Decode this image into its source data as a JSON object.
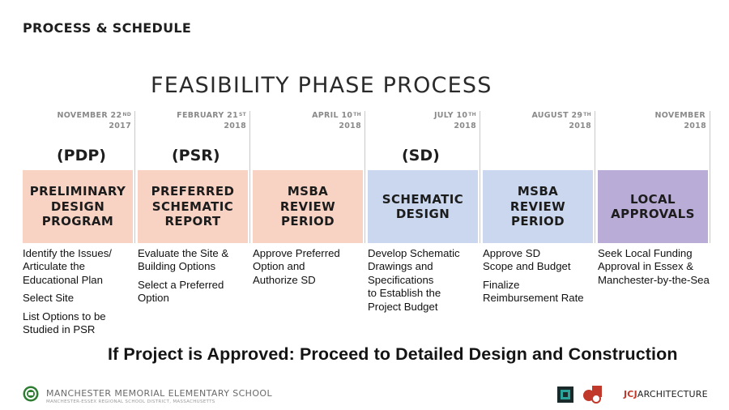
{
  "section_title": "PROCESS & SCHEDULE",
  "main_title": "FEASIBILITY PHASE PROCESS",
  "phases": [
    {
      "date_main": "NOVEMBER 22",
      "date_sup": "ND",
      "year": "2017",
      "abbr": "(PDP)",
      "title": "PRELIMINARY\nDESIGN\nPROGRAM",
      "color": "#f8d3c4",
      "items": [
        "Identify the Issues/\nArticulate the\nEducational Plan",
        "Select Site",
        "List Options to be\nStudied in PSR"
      ]
    },
    {
      "date_main": "FEBRUARY 21",
      "date_sup": "ST",
      "year": "2018",
      "abbr": "(PSR)",
      "title": "PREFERRED\nSCHEMATIC\nREPORT",
      "color": "#f8d3c4",
      "items": [
        "Evaluate the Site &\nBuilding Options",
        "Select a Preferred\nOption"
      ]
    },
    {
      "date_main": "APRIL 10",
      "date_sup": "TH",
      "year": "2018",
      "abbr": "",
      "title": "MSBA\nREVIEW\nPERIOD",
      "color": "#f8d3c4",
      "items": [
        "Approve Preferred\nOption and\nAuthorize SD"
      ]
    },
    {
      "date_main": "JULY 10",
      "date_sup": "TH",
      "year": "2018",
      "abbr": "(SD)",
      "title": "SCHEMATIC\nDESIGN",
      "color": "#cad7ee",
      "items": [
        "Develop Schematic\nDrawings and\nSpecifications\nto Establish the\nProject Budget"
      ]
    },
    {
      "date_main": "AUGUST 29",
      "date_sup": "TH",
      "year": "2018",
      "abbr": "",
      "title": "MSBA\nREVIEW\nPERIOD",
      "color": "#cad7ee",
      "items": [
        "Approve SD\nScope and Budget",
        "Finalize\nReimbursement Rate"
      ]
    },
    {
      "date_main": "NOVEMBER",
      "date_sup": "",
      "year": "2018",
      "abbr": "",
      "title": "LOCAL\nAPPROVALS",
      "color": "#b9acd6",
      "items": [
        "Seek Local Funding\nApproval in Essex &\nManchester-by-the-Sea"
      ]
    }
  ],
  "footer_banner": "If Project is Approved: Proceed to Detailed Design and Construction",
  "footer": {
    "school_name": "MANCHESTER MEMORIAL ELEMENTARY SCHOOL",
    "school_district": "MANCHESTER-ESSEX REGIONAL SCHOOL DISTRICT, MASSACHUSETTS",
    "firm_jcj": "JCJ",
    "firm_rest": "ARCHITECTURE",
    "icons": {
      "school_logo": "school-seal-logo",
      "partner1": "partner-square-logo",
      "partner2": "partner-monogram-logo"
    }
  }
}
